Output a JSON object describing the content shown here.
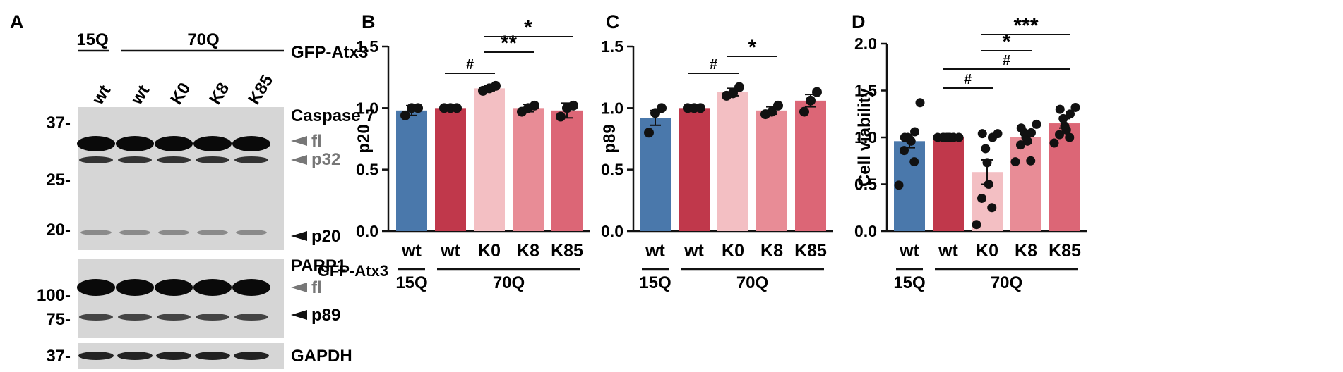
{
  "colors": {
    "wt15Q": "#4a78ab",
    "wt70Q": "#c0384b",
    "K0": "#f3bfc3",
    "K8": "#e88c96",
    "K85": "#dc6676",
    "arrow_dark": "#111111",
    "arrow_grey": "#777777"
  },
  "panel_a": {
    "letter": "A",
    "group_labels": [
      "15Q",
      "70Q"
    ],
    "construct_label": "GFP-Atx3",
    "lane_labels": [
      "wt",
      "wt",
      "K0",
      "K8",
      "K85"
    ],
    "blot1": {
      "title": "Caspase 7",
      "mw_markers": [
        "37-",
        "25-",
        "20-"
      ],
      "band_labels": [
        "fl",
        "p32",
        "p20"
      ]
    },
    "blot2": {
      "title": "PARP1",
      "mw_markers": [
        "100-",
        "75-"
      ],
      "band_labels": [
        "fl",
        "p89"
      ]
    },
    "blot3": {
      "mw_markers": [
        "37-"
      ],
      "label": "GAPDH"
    }
  },
  "chart_data": [
    {
      "panel": "B",
      "type": "bar",
      "ylabel": "p20",
      "ylim": [
        0,
        1.5
      ],
      "yticks": [
        "0.0",
        "0.5",
        "1.0",
        "1.5"
      ],
      "categories": [
        "wt",
        "wt",
        "K0",
        "K8",
        "K85"
      ],
      "values": [
        0.98,
        1.0,
        1.16,
        1.0,
        0.98
      ],
      "errors": [
        0.04,
        0.0,
        0.02,
        0.03,
        0.06
      ],
      "points": [
        [
          0.94,
          1.0,
          1.0
        ],
        [
          1.0,
          1.0,
          1.0
        ],
        [
          1.14,
          1.16,
          1.18
        ],
        [
          0.97,
          1.0,
          1.02
        ],
        [
          0.93,
          1.0,
          1.02
        ]
      ],
      "x_title": "GFP-Atx3",
      "groups": [
        {
          "label": "15Q",
          "from": 0,
          "to": 0
        },
        {
          "label": "70Q",
          "from": 1,
          "to": 4
        }
      ],
      "significance": [
        {
          "from": 1,
          "to": 2,
          "label": "#"
        },
        {
          "from": 2,
          "to": 3,
          "label": "**"
        },
        {
          "from": 2,
          "to": 4,
          "label": "*"
        }
      ]
    },
    {
      "panel": "C",
      "type": "bar",
      "ylabel": "p89",
      "ylim": [
        0,
        1.5
      ],
      "yticks": [
        "0.0",
        "0.5",
        "1.0",
        "1.5"
      ],
      "categories": [
        "wt",
        "wt",
        "K0",
        "K8",
        "K85"
      ],
      "values": [
        0.92,
        1.0,
        1.13,
        0.98,
        1.06
      ],
      "errors": [
        0.06,
        0.0,
        0.03,
        0.03,
        0.05
      ],
      "points": [
        [
          0.8,
          0.96,
          1.0
        ],
        [
          1.0,
          1.0,
          1.0
        ],
        [
          1.1,
          1.12,
          1.17
        ],
        [
          0.95,
          0.97,
          1.02
        ],
        [
          0.97,
          1.06,
          1.13
        ]
      ],
      "groups": [
        {
          "label": "15Q",
          "from": 0,
          "to": 0
        },
        {
          "label": "70Q",
          "from": 1,
          "to": 4
        }
      ],
      "significance": [
        {
          "from": 1,
          "to": 2,
          "label": "#"
        },
        {
          "from": 2,
          "to": 3,
          "label": "*"
        }
      ]
    },
    {
      "panel": "D",
      "type": "bar",
      "ylabel": "Cell viability",
      "ylim": [
        0,
        2.0
      ],
      "yticks": [
        "0.0",
        "0.5",
        "1.0",
        "1.5",
        "2.0"
      ],
      "categories": [
        "wt",
        "wt",
        "K0",
        "K8",
        "K85"
      ],
      "values": [
        0.96,
        1.0,
        0.63,
        1.0,
        1.15
      ],
      "errors": [
        0.07,
        0.0,
        0.13,
        0.06,
        0.05
      ],
      "points": [
        [
          0.49,
          0.74,
          0.86,
          0.96,
          0.98,
          1.0,
          1.06,
          1.0,
          1.37
        ],
        [
          1.0,
          1.0,
          1.0,
          1.0,
          1.0,
          1.0,
          1.0,
          1.0,
          1.0
        ],
        [
          0.07,
          0.25,
          0.35,
          0.5,
          0.73,
          0.88,
          1.0,
          1.04,
          1.04
        ],
        [
          0.74,
          0.75,
          0.92,
          0.96,
          1.0,
          1.05,
          1.05,
          1.1,
          1.14
        ],
        [
          0.94,
          1.0,
          1.03,
          1.08,
          1.12,
          1.2,
          1.25,
          1.3,
          1.32
        ]
      ],
      "groups": [
        {
          "label": "15Q",
          "from": 0,
          "to": 0
        },
        {
          "label": "70Q",
          "from": 1,
          "to": 4
        }
      ],
      "significance": [
        {
          "from": 1,
          "to": 2,
          "label": "#"
        },
        {
          "from": 1,
          "to": 4,
          "label": "#"
        },
        {
          "from": 2,
          "to": 3,
          "label": "*"
        },
        {
          "from": 2,
          "to": 4,
          "label": "***"
        }
      ]
    }
  ]
}
